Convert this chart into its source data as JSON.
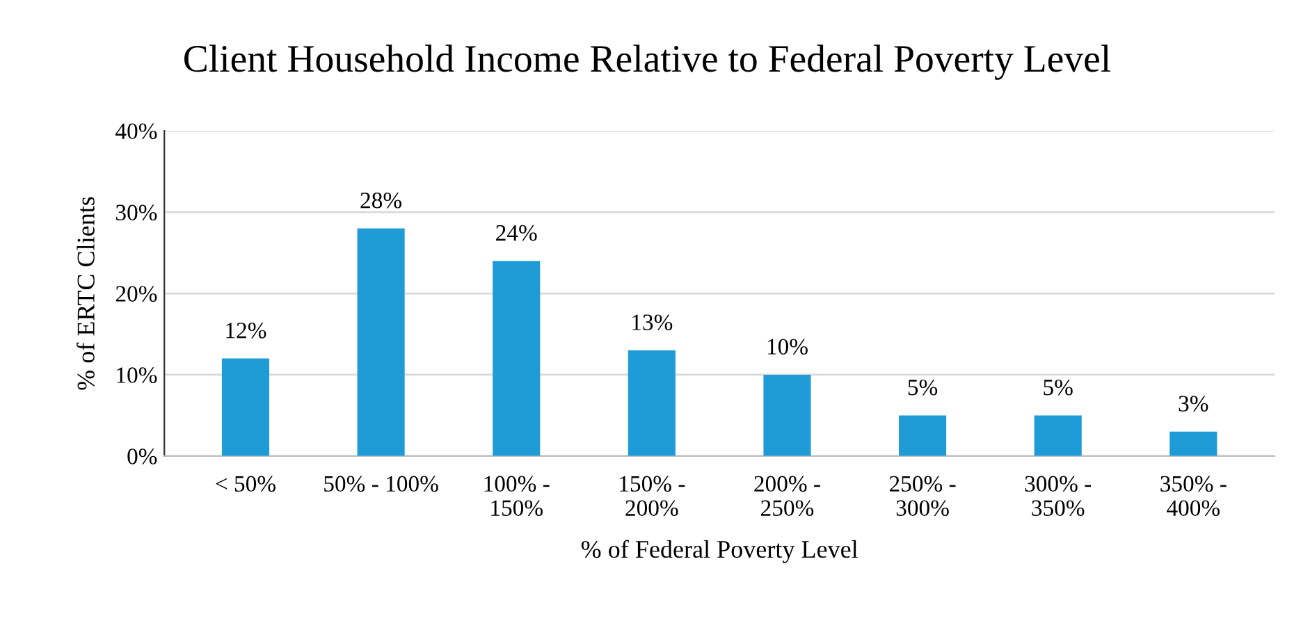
{
  "chart_data": {
    "type": "bar",
    "title": "Client Household Income Relative to Federal Poverty Level",
    "xlabel": "% of Federal Poverty Level",
    "ylabel": "% of ERTC Clients",
    "categories": [
      "< 50%",
      "50% - 100%",
      "100% -\n150%",
      "150% -\n200%",
      "200% -\n250%",
      "250% -\n300%",
      "300% -\n350%",
      "350% -\n400%"
    ],
    "values": [
      12,
      28,
      24,
      13,
      10,
      5,
      5,
      3
    ],
    "value_labels": [
      "12%",
      "28%",
      "24%",
      "13%",
      "10%",
      "5%",
      "5%",
      "3%"
    ],
    "color": "#1f9cd8",
    "ylim": [
      0,
      40
    ],
    "yticks": [
      {
        "value": 0,
        "label": "0%"
      },
      {
        "value": 10,
        "label": "10%"
      },
      {
        "value": 20,
        "label": "20%"
      },
      {
        "value": 30,
        "label": "30%"
      },
      {
        "value": 40,
        "label": "40%"
      }
    ],
    "grid": "y",
    "legend": false
  }
}
